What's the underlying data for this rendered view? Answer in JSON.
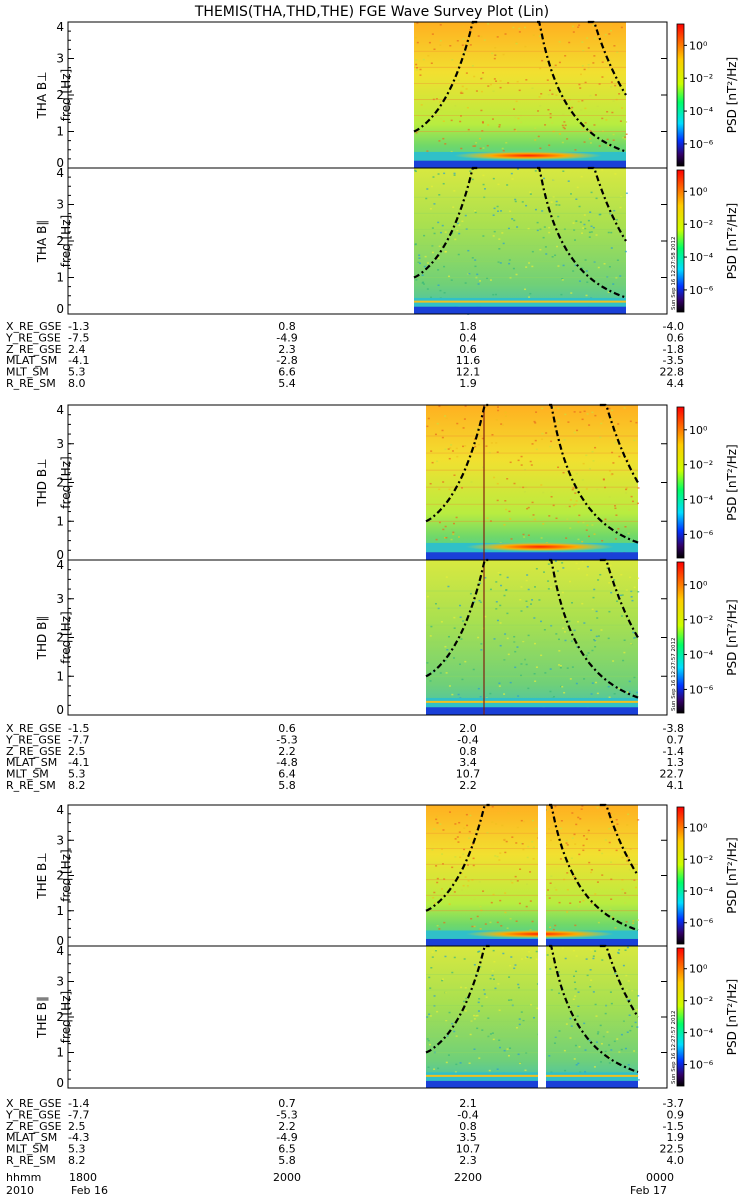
{
  "title": "THEMIS(THA,THD,THE) FGE Wave Survey Plot (Lin)",
  "colorbar": {
    "label": "PSD [nT²/Hz]",
    "ticks": [
      "10⁰",
      "10⁻²",
      "10⁻⁴",
      "10⁻⁶"
    ],
    "colors": [
      "#ff0000",
      "#ffff00",
      "#00ff60",
      "#0000ff",
      "#000000"
    ]
  },
  "ylabel_freq": "freq [Hz]",
  "yticks": [
    "0",
    "1",
    "2",
    "3",
    "4"
  ],
  "stamps": [
    "Sun Sep 16 12:27:58 2012",
    "Sun Sep 16 12:27:57 2012",
    "Sun Sep 16 12:27:57 2012"
  ],
  "probes": [
    {
      "panels": [
        {
          "label": "THA B⊥"
        },
        {
          "label": "THA B∥"
        }
      ],
      "orbit_rows": [
        {
          "name": "X_RE_GSE",
          "vals": [
            "-1.3",
            "0.8",
            "1.8",
            "-4.0"
          ]
        },
        {
          "name": "Y_RE_GSE",
          "vals": [
            "-7.5",
            "-4.9",
            "0.4",
            "0.6"
          ]
        },
        {
          "name": "Z_RE_GSE",
          "vals": [
            "2.4",
            "2.3",
            "0.6",
            "-1.8"
          ]
        },
        {
          "name": "MLAT_SM",
          "vals": [
            "-4.1",
            "-2.8",
            "11.6",
            "-3.5"
          ]
        },
        {
          "name": "MLT_SM",
          "vals": [
            "5.3",
            "6.6",
            "12.1",
            "22.8"
          ]
        },
        {
          "name": "R_RE_SM",
          "vals": [
            "8.0",
            "5.4",
            "1.9",
            "4.4"
          ]
        }
      ]
    },
    {
      "panels": [
        {
          "label": "THD B⊥"
        },
        {
          "label": "THD B∥"
        }
      ],
      "orbit_rows": [
        {
          "name": "X_RE_GSE",
          "vals": [
            "-1.5",
            "0.6",
            "2.0",
            "-3.8"
          ]
        },
        {
          "name": "Y_RE_GSE",
          "vals": [
            "-7.7",
            "-5.3",
            "-0.4",
            "0.7"
          ]
        },
        {
          "name": "Z_RE_GSE",
          "vals": [
            "2.5",
            "2.2",
            "0.8",
            "-1.4"
          ]
        },
        {
          "name": "MLAT_SM",
          "vals": [
            "-4.1",
            "-4.8",
            "3.4",
            "1.3"
          ]
        },
        {
          "name": "MLT_SM",
          "vals": [
            "5.3",
            "6.4",
            "10.7",
            "22.7"
          ]
        },
        {
          "name": "R_RE_SM",
          "vals": [
            "8.2",
            "5.8",
            "2.2",
            "4.1"
          ]
        }
      ]
    },
    {
      "panels": [
        {
          "label": "THE B⊥"
        },
        {
          "label": "THE B∥"
        }
      ],
      "orbit_rows": [
        {
          "name": "X_RE_GSE",
          "vals": [
            "-1.4",
            "0.7",
            "2.1",
            "-3.7"
          ]
        },
        {
          "name": "Y_RE_GSE",
          "vals": [
            "-7.7",
            "-5.3",
            "-0.4",
            "0.9"
          ]
        },
        {
          "name": "Z_RE_GSE",
          "vals": [
            "2.5",
            "2.2",
            "0.8",
            "-1.5"
          ]
        },
        {
          "name": "MLAT_SM",
          "vals": [
            "-4.3",
            "-4.9",
            "3.5",
            "1.9"
          ]
        },
        {
          "name": "MLT_SM",
          "vals": [
            "5.3",
            "6.5",
            "10.7",
            "22.5"
          ]
        },
        {
          "name": "R_RE_SM",
          "vals": [
            "8.2",
            "5.8",
            "2.3",
            "4.0"
          ]
        }
      ]
    }
  ],
  "time_axis": {
    "label": "hhmm",
    "ticks": [
      "1800",
      "2000",
      "2200",
      "0000"
    ],
    "year": "2010",
    "start_date": "Feb 16",
    "end_date": "Feb 17"
  },
  "chart_data": [
    {
      "type": "heatmap",
      "title": "THA B⊥",
      "ylabel": "freq [Hz]",
      "ylim": [
        0,
        4
      ],
      "data_span": [
        "2134",
        "2340"
      ],
      "cyclotron_curves": 3
    },
    {
      "type": "heatmap",
      "title": "THA B∥",
      "ylabel": "freq [Hz]",
      "ylim": [
        0,
        4
      ],
      "data_span": [
        "2134",
        "2340"
      ],
      "cyclotron_curves": 3
    },
    {
      "type": "heatmap",
      "title": "THD B⊥",
      "ylabel": "freq [Hz]",
      "ylim": [
        0,
        4
      ],
      "data_span": [
        "2140",
        "2346"
      ],
      "cyclotron_curves": 3
    },
    {
      "type": "heatmap",
      "title": "THD B∥",
      "ylabel": "freq [Hz]",
      "ylim": [
        0,
        4
      ],
      "data_span": [
        "2140",
        "2346"
      ],
      "cyclotron_curves": 3
    },
    {
      "type": "heatmap",
      "title": "THE B⊥",
      "ylabel": "freq [Hz]",
      "ylim": [
        0,
        4
      ],
      "data_span": [
        "2140",
        "2346"
      ],
      "data_gap": [
        "2257",
        "2300"
      ],
      "cyclotron_curves": 3
    },
    {
      "type": "heatmap",
      "title": "THE B∥",
      "ylabel": "freq [Hz]",
      "ylim": [
        0,
        4
      ],
      "data_span": [
        "2140",
        "2346"
      ],
      "data_gap": [
        "2257",
        "2300"
      ],
      "cyclotron_curves": 3
    }
  ]
}
